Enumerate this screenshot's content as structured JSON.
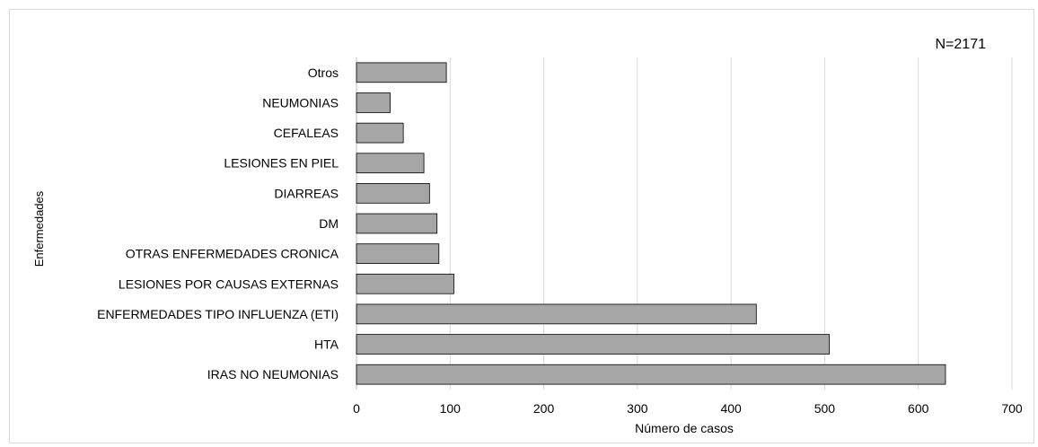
{
  "chart_data": {
    "type": "bar",
    "orientation": "horizontal",
    "annotation": "N=2171",
    "xlabel": "Número de casos",
    "ylabel": "Enfermedades",
    "xlim": [
      0,
      700
    ],
    "xticks": [
      0,
      100,
      200,
      300,
      400,
      500,
      600,
      700
    ],
    "grid": true,
    "bar_color": "#a6a6a6",
    "categories": [
      "Otros",
      "NEUMONIAS",
      "CEFALEAS",
      "LESIONES EN PIEL",
      "DIARREAS",
      "DM",
      "OTRAS ENFERMEDADES CRONICA",
      "LESIONES POR CAUSAS EXTERNAS",
      "ENFERMEDADES TIPO INFLUENZA (ETI)",
      "HTA",
      "IRAS NO NEUMONIAS"
    ],
    "values": [
      96,
      36,
      50,
      72,
      78,
      86,
      88,
      104,
      427,
      505,
      629
    ]
  }
}
